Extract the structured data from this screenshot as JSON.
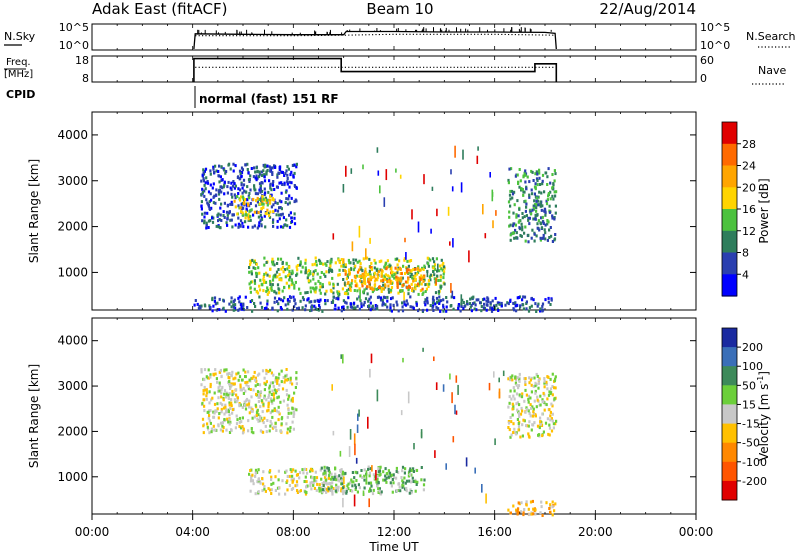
{
  "header": {
    "station": "Adak East (fitACF)",
    "beam": "Beam 10",
    "date": "22/Aug/2014"
  },
  "panel_nsky": {
    "label": "N.Sky",
    "left_ticks": [
      "10^5",
      "10^0"
    ],
    "right_ticks": [
      "10^5",
      "10^0"
    ],
    "right_label": "N.Search"
  },
  "panel_freq": {
    "label_line1": "Freq.",
    "label_line2": "[MHz]",
    "left_ticks": [
      "18",
      "8"
    ],
    "right_ticks": [
      "60",
      "0"
    ],
    "right_label": "Nave"
  },
  "cpid": {
    "label": "CPID",
    "text": "normal (fast) 151 RF"
  },
  "x_axis": {
    "ticks": [
      "00:00",
      "04:00",
      "08:00",
      "12:00",
      "16:00",
      "20:00",
      "00:00"
    ],
    "label": "Time UT"
  },
  "chart_data": [
    {
      "type": "line",
      "panel": "N.Sky / N.Search",
      "x_unit": "hours UT",
      "y_scale": "log",
      "ylim_exp": [
        0,
        5
      ],
      "series": [
        {
          "name": "N.Sky",
          "style": "solid",
          "x": [
            4.05,
            4.1,
            6,
            8,
            10,
            10.1,
            12,
            14,
            16,
            18,
            18.4,
            18.45
          ],
          "y": [
            0,
            3.3,
            3.2,
            3.1,
            3.1,
            3.8,
            3.8,
            3.7,
            3.7,
            3.6,
            3.4,
            0
          ]
        },
        {
          "name": "N.Search",
          "style": "dotted",
          "x": [
            4.1,
            8,
            10,
            12,
            16,
            18.4
          ],
          "y": [
            2.9,
            2.9,
            3.0,
            3.2,
            3.2,
            3.0
          ]
        }
      ]
    },
    {
      "type": "line",
      "panel": "Freq. / Nave",
      "x_unit": "hours UT",
      "freq_ylim": [
        8,
        18
      ],
      "nave_ylim": [
        0,
        60
      ],
      "series": [
        {
          "name": "Freq.",
          "style": "solid",
          "x": [
            4.05,
            4.05,
            9.9,
            9.9,
            17.6,
            17.6,
            18.45,
            18.45
          ],
          "y": [
            8,
            17,
            17,
            12,
            12,
            15,
            15,
            8
          ]
        },
        {
          "name": "Nave",
          "style": "dotted",
          "x": [
            4.1,
            18.4
          ],
          "y": [
            34,
            34
          ]
        }
      ]
    },
    {
      "type": "heatmap",
      "panel": "Power",
      "xlabel": "Time UT",
      "ylabel": "Slant Range [km]",
      "xlim": [
        0,
        24
      ],
      "ylim": [
        180,
        4500
      ],
      "y_ticks": [
        1000,
        2000,
        3000,
        4000
      ],
      "colorbar": {
        "label": "Power [dB]",
        "ticks": [
          "28",
          "24",
          "20",
          "16",
          "12",
          "8",
          "4"
        ],
        "colors": [
          "#e00000",
          "#ff6a00",
          "#ffa500",
          "#ffd400",
          "#4cc23e",
          "#2e7d5c",
          "#2a3fb0",
          "#0000ff"
        ]
      },
      "regions": [
        {
          "t0": 4.3,
          "t1": 8.1,
          "r0": 2000,
          "r1": 3400,
          "level": 6,
          "label": "upper band"
        },
        {
          "t0": 5.6,
          "t1": 7.2,
          "r0": 2200,
          "r1": 2700,
          "level": 3,
          "label": "upper core"
        },
        {
          "t0": 6.2,
          "t1": 14.0,
          "r0": 550,
          "r1": 1350,
          "level": 4,
          "label": "lower band"
        },
        {
          "t0": 10.0,
          "t1": 13.2,
          "r0": 650,
          "r1": 1150,
          "level": 2,
          "label": "lower core"
        },
        {
          "t0": 16.5,
          "t1": 18.4,
          "r0": 1700,
          "r1": 3300,
          "level": 5,
          "label": "late band"
        },
        {
          "t0": 4.0,
          "t1": 18.4,
          "r0": 180,
          "r1": 500,
          "level": 6,
          "label": "near range"
        }
      ]
    },
    {
      "type": "heatmap",
      "panel": "Velocity",
      "xlabel": "Time UT",
      "ylabel": "Slant Range [km]",
      "xlim": [
        0,
        24
      ],
      "ylim": [
        180,
        4500
      ],
      "y_ticks": [
        1000,
        2000,
        3000,
        4000
      ],
      "colorbar": {
        "label": "Velocity [m s^-1]",
        "ticks": [
          "200",
          "100",
          "50",
          "15",
          "-15",
          "-50",
          "-100",
          "-200"
        ],
        "colors": [
          "#1a2aa0",
          "#3a6fb8",
          "#3d8a5a",
          "#6ccf3a",
          "#c8c8c8",
          "#ffc000",
          "#ff8800",
          "#ff5500",
          "#e00000"
        ]
      },
      "regions": [
        {
          "t0": 4.3,
          "t1": 8.1,
          "r0": 2000,
          "r1": 3400,
          "level": 4,
          "label": "upper band ground"
        },
        {
          "t0": 6.2,
          "t1": 10.0,
          "r0": 650,
          "r1": 1200,
          "level": 4,
          "label": "lower band ground"
        },
        {
          "t0": 9.0,
          "t1": 13.2,
          "r0": 650,
          "r1": 1250,
          "level": 3,
          "label": "lower band flow"
        },
        {
          "t0": 16.5,
          "t1": 18.4,
          "r0": 1900,
          "r1": 3300,
          "level": 4,
          "label": "late band"
        },
        {
          "t0": 16.5,
          "t1": 18.4,
          "r0": 180,
          "r1": 500,
          "level": 5,
          "label": "near range late"
        }
      ]
    }
  ]
}
